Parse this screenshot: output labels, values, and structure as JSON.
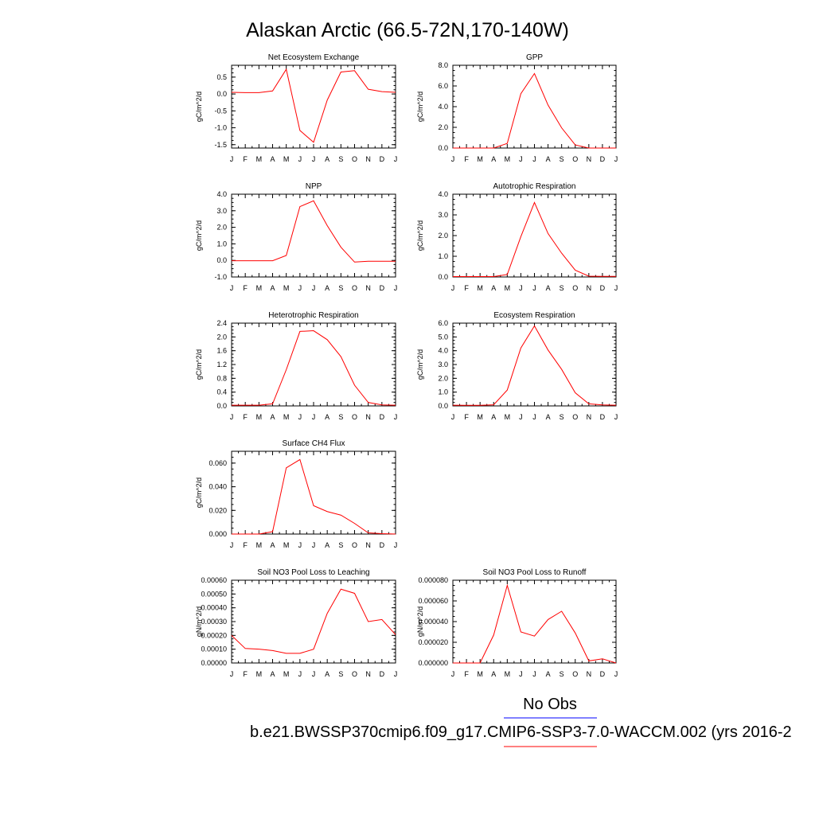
{
  "title": "Alaskan Arctic (66.5-72N,170-140W)",
  "legend": {
    "entries": [
      {
        "name": "No Obs",
        "color": "#0000ff"
      },
      {
        "name": "b.e21.BWSSP370cmip6.f09_g17.CMIP6-SSP3-7.0-WACCM.002 (yrs 2016-2",
        "color": "#ff0000"
      }
    ]
  },
  "month_labels": [
    "J",
    "F",
    "M",
    "A",
    "M",
    "J",
    "J",
    "A",
    "S",
    "O",
    "N",
    "D",
    "J"
  ],
  "colors": {
    "series": "#ff0000",
    "obs": "#0000ff",
    "axis": "#000000"
  },
  "chart_data": [
    {
      "type": "line",
      "title": "Net Ecosystem Exchange",
      "ylabel": "gC/m^2/d",
      "x": [
        "J",
        "F",
        "M",
        "A",
        "M",
        "J",
        "J",
        "A",
        "S",
        "O",
        "N",
        "D",
        "J"
      ],
      "ylim": [
        -1.6,
        0.85
      ],
      "yticks": [
        -1.5,
        -1.0,
        -0.5,
        0.0,
        0.5
      ],
      "ytick_labels": [
        "-1.5",
        "-1.0",
        "-0.5",
        "0.0",
        "0.5"
      ],
      "series": [
        {
          "values": [
            0.05,
            0.04,
            0.04,
            0.09,
            0.73,
            -1.08,
            -1.43,
            -0.18,
            0.65,
            0.69,
            0.14,
            0.07,
            0.05
          ]
        }
      ]
    },
    {
      "type": "line",
      "title": "GPP",
      "ylabel": "gC/m^2/d",
      "x": [
        "J",
        "F",
        "M",
        "A",
        "M",
        "J",
        "J",
        "A",
        "S",
        "O",
        "N",
        "D",
        "J"
      ],
      "ylim": [
        0,
        8
      ],
      "yticks": [
        0,
        2,
        4,
        6,
        8
      ],
      "ytick_labels": [
        "0.0",
        "2.0",
        "4.0",
        "6.0",
        "8.0"
      ],
      "series": [
        {
          "values": [
            0.0,
            0.0,
            0.0,
            0.0,
            0.45,
            5.25,
            7.2,
            4.15,
            1.95,
            0.3,
            0.0,
            0.0,
            0.0
          ]
        }
      ]
    },
    {
      "type": "line",
      "title": "NPP",
      "ylabel": "gC/m^2/d",
      "x": [
        "J",
        "F",
        "M",
        "A",
        "M",
        "J",
        "J",
        "A",
        "S",
        "O",
        "N",
        "D",
        "J"
      ],
      "ylim": [
        -1,
        4
      ],
      "yticks": [
        -1,
        0,
        1,
        2,
        3,
        4
      ],
      "ytick_labels": [
        "-1.0",
        "0.0",
        "1.0",
        "2.0",
        "3.0",
        "4.0"
      ],
      "series": [
        {
          "values": [
            -0.02,
            -0.02,
            -0.02,
            -0.02,
            0.3,
            3.25,
            3.6,
            2.1,
            0.8,
            -0.1,
            -0.05,
            -0.05,
            -0.05
          ]
        }
      ]
    },
    {
      "type": "line",
      "title": "Autotrophic Respiration",
      "ylabel": "gC/m^2/d",
      "x": [
        "J",
        "F",
        "M",
        "A",
        "M",
        "J",
        "J",
        "A",
        "S",
        "O",
        "N",
        "D",
        "J"
      ],
      "ylim": [
        0,
        4
      ],
      "yticks": [
        0,
        1,
        2,
        3,
        4
      ],
      "ytick_labels": [
        "0.0",
        "1.0",
        "2.0",
        "3.0",
        "4.0"
      ],
      "series": [
        {
          "values": [
            0.02,
            0.02,
            0.02,
            0.02,
            0.12,
            1.95,
            3.6,
            2.1,
            1.15,
            0.33,
            0.04,
            0.03,
            0.03
          ]
        }
      ]
    },
    {
      "type": "line",
      "title": "Heterotrophic Respiration",
      "ylabel": "gC/m^2/d",
      "x": [
        "J",
        "F",
        "M",
        "A",
        "M",
        "J",
        "J",
        "A",
        "S",
        "O",
        "N",
        "D",
        "J"
      ],
      "ylim": [
        0,
        2.4
      ],
      "yticks": [
        0,
        0.4,
        0.8,
        1.2,
        1.6,
        2.0,
        2.4
      ],
      "ytick_labels": [
        "0.0",
        "0.4",
        "0.8",
        "1.2",
        "1.6",
        "2.0",
        "2.4"
      ],
      "series": [
        {
          "values": [
            0.02,
            0.02,
            0.02,
            0.06,
            1.05,
            2.16,
            2.18,
            1.92,
            1.43,
            0.6,
            0.1,
            0.03,
            0.02
          ]
        }
      ]
    },
    {
      "type": "line",
      "title": "Ecosystem Respiration",
      "ylabel": "gC/m^2/d",
      "x": [
        "J",
        "F",
        "M",
        "A",
        "M",
        "J",
        "J",
        "A",
        "S",
        "O",
        "N",
        "D",
        "J"
      ],
      "ylim": [
        0,
        6
      ],
      "yticks": [
        0,
        1,
        2,
        3,
        4,
        5,
        6
      ],
      "ytick_labels": [
        "0.0",
        "1.0",
        "2.0",
        "3.0",
        "4.0",
        "5.0",
        "6.0"
      ],
      "series": [
        {
          "values": [
            0.05,
            0.04,
            0.04,
            0.08,
            1.15,
            4.2,
            5.8,
            4.05,
            2.65,
            0.95,
            0.15,
            0.07,
            0.05
          ]
        }
      ]
    },
    {
      "type": "line",
      "title": "Surface CH4 Flux",
      "ylabel": "gC/m^2/d",
      "x": [
        "J",
        "F",
        "M",
        "A",
        "M",
        "J",
        "J",
        "A",
        "S",
        "O",
        "N",
        "D",
        "J"
      ],
      "ylim": [
        0,
        0.07
      ],
      "yticks": [
        0,
        0.02,
        0.04,
        0.06
      ],
      "ytick_labels": [
        "0.000",
        "0.020",
        "0.040",
        "0.060"
      ],
      "series": [
        {
          "values": [
            0.0,
            0.0,
            0.0,
            0.002,
            0.056,
            0.063,
            0.024,
            0.019,
            0.016,
            0.009,
            0.001,
            0.0003,
            0.0
          ]
        }
      ]
    },
    {
      "type": "line",
      "title": "Soil NO3 Pool Loss to Leaching",
      "ylabel": "gN/m^2/d",
      "x": [
        "J",
        "F",
        "M",
        "A",
        "M",
        "J",
        "J",
        "A",
        "S",
        "O",
        "N",
        "D",
        "J"
      ],
      "ylim": [
        0,
        0.0006
      ],
      "yticks": [
        0,
        0.0001,
        0.0002,
        0.0003,
        0.0004,
        0.0005,
        0.0006
      ],
      "ytick_labels": [
        "0.00000",
        "0.00010",
        "0.00020",
        "0.00030",
        "0.00040",
        "0.00050",
        "0.00060"
      ],
      "series": [
        {
          "values": [
            0.0002,
            0.000105,
            0.0001,
            9e-05,
            7e-05,
            7e-05,
            0.0001,
            0.00036,
            0.000535,
            0.000505,
            0.0003,
            0.000315,
            0.000205
          ]
        }
      ]
    },
    {
      "type": "line",
      "title": "Soil NO3 Pool Loss to Runoff",
      "ylabel": "gN/m^2/d",
      "x": [
        "J",
        "F",
        "M",
        "A",
        "M",
        "J",
        "J",
        "A",
        "S",
        "O",
        "N",
        "D",
        "J"
      ],
      "ylim": [
        0,
        8e-05
      ],
      "yticks": [
        0,
        2e-05,
        4e-05,
        6e-05,
        8e-05
      ],
      "ytick_labels": [
        "0.000000",
        "0.000020",
        "0.000040",
        "0.000060",
        "0.000080"
      ],
      "series": [
        {
          "values": [
            0.0,
            0.0,
            0.0,
            2.7e-05,
            7.5e-05,
            3e-05,
            2.6e-05,
            4.2e-05,
            5e-05,
            2.9e-05,
            2e-06,
            4e-06,
            0.0
          ]
        }
      ]
    }
  ]
}
